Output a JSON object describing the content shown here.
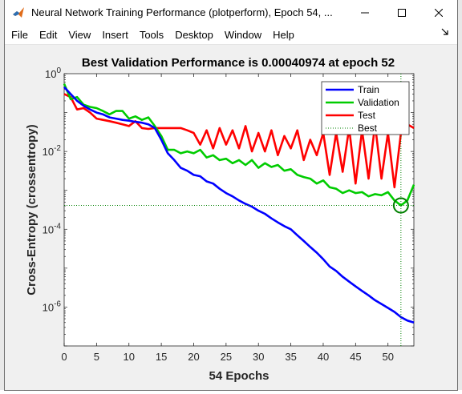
{
  "window": {
    "title": "Neural Network Training Performance (plotperform), Epoch 54, ...",
    "minimize_icon": "minimize-icon",
    "maximize_icon": "maximize-icon",
    "close_icon": "close-icon",
    "app_icon": "matlab-icon"
  },
  "menubar": {
    "items": [
      "File",
      "Edit",
      "View",
      "Insert",
      "Tools",
      "Desktop",
      "Window",
      "Help"
    ],
    "dock_icon": "dock-arrow-icon"
  },
  "chart_data": {
    "type": "line",
    "title": "Best Validation Performance is 0.00040974 at epoch 52",
    "xlabel": "54 Epochs",
    "ylabel": "Cross-Entropy  (crossentropy)",
    "xlim": [
      0,
      54
    ],
    "ylim": [
      1e-07,
      1
    ],
    "yscale": "log",
    "xticks": [
      0,
      5,
      10,
      15,
      20,
      25,
      30,
      35,
      40,
      45,
      50
    ],
    "xtick_labels": [
      "0",
      "5",
      "10",
      "15",
      "20",
      "25",
      "30",
      "35",
      "40",
      "45",
      "50"
    ],
    "yticks": [
      1e-06,
      0.0001,
      0.01,
      1
    ],
    "ytick_labels": [
      {
        "base": "10",
        "exp": "-6"
      },
      {
        "base": "10",
        "exp": "-4"
      },
      {
        "base": "10",
        "exp": "-2"
      },
      {
        "base": "10",
        "exp": "0"
      }
    ],
    "grid": false,
    "legend_position": "top-right",
    "series": [
      {
        "name": "Train",
        "color": "#0000ff",
        "x": [
          0,
          1,
          2,
          3,
          4,
          5,
          6,
          7,
          8,
          9,
          10,
          11,
          12,
          13,
          14,
          15,
          16,
          17,
          18,
          19,
          20,
          21,
          22,
          23,
          24,
          25,
          26,
          27,
          28,
          29,
          30,
          31,
          32,
          33,
          34,
          35,
          36,
          37,
          38,
          39,
          40,
          41,
          42,
          43,
          44,
          45,
          46,
          47,
          48,
          49,
          50,
          51,
          52,
          53,
          54
        ],
        "y": [
          0.45,
          0.3,
          0.2,
          0.15,
          0.12,
          0.1,
          0.09,
          0.075,
          0.07,
          0.065,
          0.062,
          0.058,
          0.055,
          0.05,
          0.04,
          0.02,
          0.009,
          0.006,
          0.0038,
          0.0032,
          0.0025,
          0.0023,
          0.0017,
          0.0015,
          0.0011,
          0.00085,
          0.0007,
          0.00055,
          0.00045,
          0.00038,
          0.0003,
          0.00025,
          0.00019,
          0.00015,
          0.00012,
          0.0001,
          7e-05,
          5e-05,
          3.5e-05,
          2.5e-05,
          1.7e-05,
          1.1e-05,
          8.5e-06,
          6e-06,
          4.5e-06,
          3.4e-06,
          2.6e-06,
          2e-06,
          1.5e-06,
          1.2e-06,
          9.5e-07,
          7.5e-07,
          5.5e-07,
          4.5e-07,
          4e-07
        ]
      },
      {
        "name": "Validation",
        "color": "#00cc00",
        "x": [
          0,
          1,
          2,
          3,
          4,
          5,
          6,
          7,
          8,
          9,
          10,
          11,
          12,
          13,
          14,
          15,
          16,
          17,
          18,
          19,
          20,
          21,
          22,
          23,
          24,
          25,
          26,
          27,
          28,
          29,
          30,
          31,
          32,
          33,
          34,
          35,
          36,
          37,
          38,
          39,
          40,
          41,
          42,
          43,
          44,
          45,
          46,
          47,
          48,
          49,
          50,
          51,
          52,
          53,
          54
        ],
        "y": [
          0.55,
          0.22,
          0.25,
          0.16,
          0.14,
          0.13,
          0.11,
          0.09,
          0.11,
          0.11,
          0.07,
          0.08,
          0.065,
          0.075,
          0.045,
          0.025,
          0.011,
          0.011,
          0.009,
          0.01,
          0.009,
          0.011,
          0.007,
          0.008,
          0.006,
          0.0065,
          0.005,
          0.006,
          0.0045,
          0.006,
          0.0038,
          0.005,
          0.004,
          0.0045,
          0.0032,
          0.0035,
          0.0025,
          0.0022,
          0.002,
          0.0015,
          0.0018,
          0.0012,
          0.0011,
          0.00085,
          0.001,
          0.00085,
          0.0009,
          0.0007,
          0.0008,
          0.00075,
          0.0009,
          0.00055,
          0.00041,
          0.00055,
          0.0014
        ]
      },
      {
        "name": "Test",
        "color": "#ff0000",
        "x": [
          0,
          1,
          2,
          3,
          4,
          5,
          6,
          7,
          8,
          9,
          10,
          11,
          12,
          13,
          14,
          15,
          16,
          17,
          18,
          19,
          20,
          21,
          22,
          23,
          24,
          25,
          26,
          27,
          28,
          29,
          30,
          31,
          32,
          33,
          34,
          35,
          36,
          37,
          38,
          39,
          40,
          41,
          42,
          43,
          44,
          45,
          46,
          47,
          48,
          49,
          50,
          51,
          52,
          53,
          54
        ],
        "y": [
          0.3,
          0.25,
          0.12,
          0.13,
          0.1,
          0.07,
          0.065,
          0.06,
          0.055,
          0.05,
          0.045,
          0.06,
          0.04,
          0.038,
          0.04,
          0.04,
          0.04,
          0.04,
          0.04,
          0.035,
          0.03,
          0.015,
          0.035,
          0.012,
          0.04,
          0.015,
          0.035,
          0.012,
          0.045,
          0.01,
          0.03,
          0.01,
          0.035,
          0.008,
          0.025,
          0.012,
          0.035,
          0.006,
          0.02,
          0.008,
          0.03,
          0.0025,
          0.03,
          0.003,
          0.04,
          0.0015,
          0.035,
          0.002,
          0.05,
          0.002,
          0.03,
          0.0012,
          0.03,
          0.05,
          0.04
        ]
      },
      {
        "name": "Best",
        "color": "#008000",
        "style": "dotted",
        "best_epoch": 52,
        "best_value": 0.00040974
      }
    ]
  }
}
